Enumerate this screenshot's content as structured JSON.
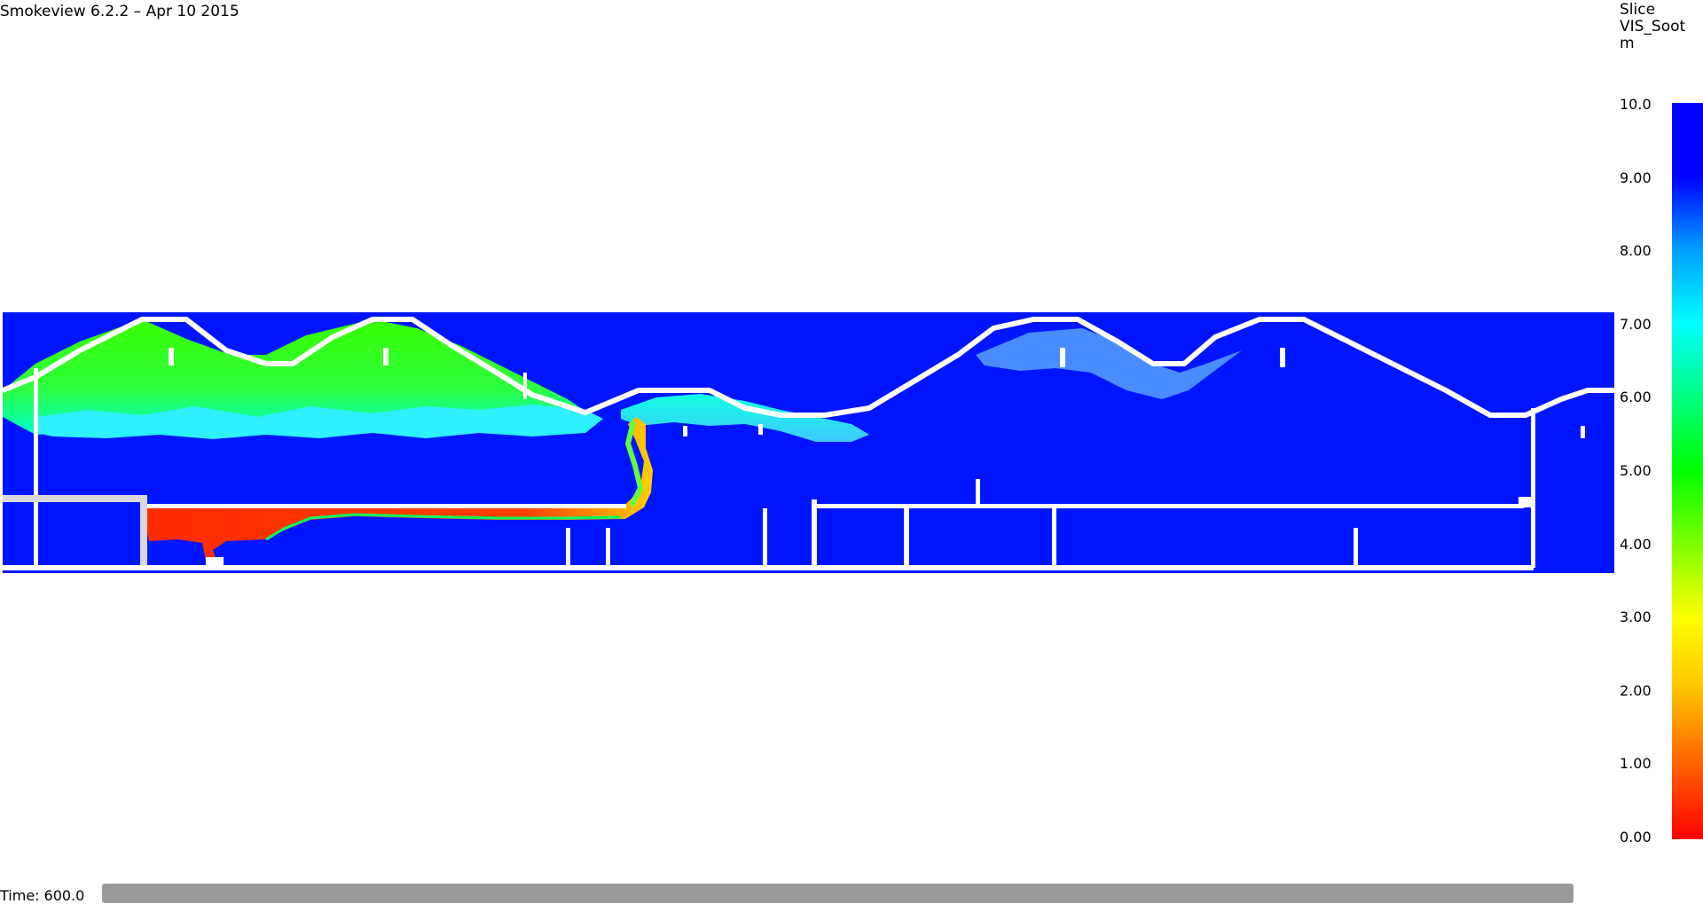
{
  "app": {
    "title": "Smokeview 6.2.2 – Apr 10 2015"
  },
  "legend": {
    "line1": "Slice",
    "line2": "VIS_Soot",
    "line3": "m",
    "ticks": [
      "10.0",
      "9.00",
      "8.00",
      "7.00",
      "6.00",
      "5.00",
      "4.00",
      "3.00",
      "2.00",
      "1.00",
      "0.00"
    ],
    "range": [
      0,
      10
    ],
    "colors": {
      "high": "#0000ff",
      "mid_high": "#00ffff",
      "mid": "#00ff00",
      "mid_low": "#ffff00",
      "low": "#ff0000"
    }
  },
  "time": {
    "label": "Time:",
    "value": "600.0"
  },
  "scene": {
    "background_color": "#0015ff",
    "wall_color": "#ffffff",
    "blockage_color": "#d8d8d8"
  }
}
